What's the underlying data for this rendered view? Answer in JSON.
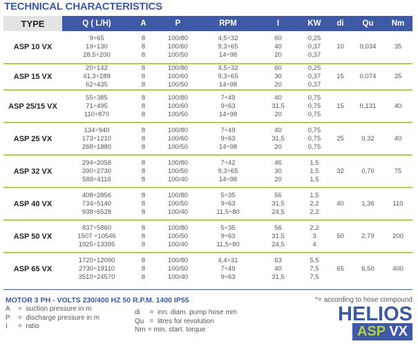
{
  "title": "TECHNICAL CHARACTERISTICS",
  "columns": [
    "TYPE",
    "Q ( L/H)",
    "A",
    "P",
    "RPM",
    "I",
    "KW",
    "di",
    "Qu",
    "Nm"
  ],
  "rows": [
    {
      "type": "ASP 10 VX",
      "q": [
        "9÷65",
        "19÷130",
        "28,5÷200"
      ],
      "a": [
        "8",
        "8",
        "8"
      ],
      "p": [
        "100/80",
        "100/60",
        "100/50"
      ],
      "rpm": [
        "4,5÷32",
        "9,3÷65",
        "14÷98"
      ],
      "i": [
        "60",
        "40",
        "20"
      ],
      "kw": [
        "0,25",
        "0,37",
        "0,37"
      ],
      "di": "10",
      "qu": "0,034",
      "nm": "35"
    },
    {
      "type": "ASP 15 VX",
      "q": [
        "20÷142",
        "41,3÷289",
        "62÷435"
      ],
      "a": [
        "8",
        "8",
        "8"
      ],
      "p": [
        "100/80",
        "100/60",
        "100/50"
      ],
      "rpm": [
        "4,5÷32",
        "9,3÷65",
        "14÷98"
      ],
      "i": [
        "60",
        "30",
        "20"
      ],
      "kw": [
        "0,25",
        "0,37",
        "0,37"
      ],
      "di": "15",
      "qu": "0,074",
      "nm": "35"
    },
    {
      "type": "ASP 25/15 VX",
      "q": [
        "55÷385",
        "71÷495",
        "110÷870"
      ],
      "a": [
        "8",
        "8",
        "8"
      ],
      "p": [
        "100/80",
        "100/60",
        "100/50"
      ],
      "rpm": [
        "7÷49",
        "9÷63",
        "14÷98"
      ],
      "i": [
        "40",
        "31,5",
        "20"
      ],
      "kw": [
        "0,75",
        "0,75",
        "0,75"
      ],
      "di": "15",
      "qu": "0,131",
      "nm": "40"
    },
    {
      "type": "ASP 25 VX",
      "q": [
        "134÷940",
        "173÷1210",
        "268÷1880"
      ],
      "a": [
        "8",
        "8",
        "8"
      ],
      "p": [
        "100/80",
        "100/60",
        "100/50"
      ],
      "rpm": [
        "7÷49",
        "9÷63",
        "14÷98"
      ],
      "i": [
        "40",
        "31,5",
        "20"
      ],
      "kw": [
        "0,75",
        "0,75",
        "0,75"
      ],
      "di": "25",
      "qu": "0,32",
      "nm": "40"
    },
    {
      "type": "ASP 32 VX",
      "q": [
        "294÷2058",
        "390÷2730",
        "588÷4116"
      ],
      "a": [
        "8",
        "8",
        "8"
      ],
      "p": [
        "100/80",
        "100/50",
        "100/40"
      ],
      "rpm": [
        "7÷42",
        "9,3÷65",
        "14÷98"
      ],
      "i": [
        "46",
        "30",
        "20"
      ],
      "kw": [
        "1,5",
        "1,5",
        "1,5"
      ],
      "di": "32",
      "qu": "0,70",
      "nm": "75"
    },
    {
      "type": "ASP 40 VX",
      "q": [
        "408÷2856",
        "734÷5140",
        "938÷6528"
      ],
      "a": [
        "8",
        "8",
        "8"
      ],
      "p": [
        "100/80",
        "100/50",
        "100/40"
      ],
      "rpm": [
        "5÷35",
        "9÷63",
        "11,5÷80"
      ],
      "i": [
        "56",
        "31,5",
        "24,5"
      ],
      "kw": [
        "1,5",
        "2,2",
        "2,2"
      ],
      "di": "40",
      "qu": "1,36",
      "nm": "110"
    },
    {
      "type": "ASP 50 VX",
      "q": [
        "837÷5860",
        "1507 ÷10546",
        "1925÷13395"
      ],
      "a": [
        "8",
        "8",
        "8"
      ],
      "p": [
        "100/80",
        "100/50",
        "100/40"
      ],
      "rpm": [
        "5÷35",
        "9÷63",
        "11,5÷80"
      ],
      "i": [
        "56",
        "31,5",
        "24,5"
      ],
      "kw": [
        "2,2",
        "3",
        "4"
      ],
      "di": "50",
      "qu": "2,79",
      "nm": "200"
    },
    {
      "type": "ASP 65 VX",
      "q": [
        "1720÷12090",
        "2730÷19110",
        "3510÷24570"
      ],
      "a": [
        "8",
        "8",
        "8"
      ],
      "p": [
        "100/80",
        "100/50",
        "100/40"
      ],
      "rpm": [
        "4,4÷31",
        "7÷49",
        "9÷63"
      ],
      "i": [
        "63",
        "40",
        "31,5"
      ],
      "kw": [
        "5,5",
        "7,5",
        "7,5"
      ],
      "di": "65",
      "qu": "6,50",
      "nm": "400"
    }
  ],
  "footer": {
    "motor": "MOTOR 3 PH - VOLTS 230/400 HZ 50 R.P.M. 1400 IP55",
    "legend_left": [
      {
        "k": "A",
        "v": "=  suction pressure in m"
      },
      {
        "k": "P",
        "v": "=  discharge pressure in m"
      },
      {
        "k": "I",
        "v": "=  ratio"
      }
    ],
    "legend_right": [
      {
        "k": "di",
        "v": "  =  inn. diam. pump hose mm"
      },
      {
        "k": "Qu",
        "v": "  =  litres for revolution"
      },
      {
        "k": "Nm",
        "v": " = min. start. torque"
      }
    ],
    "note": "*=  according to hose compound",
    "brand": "HELIOS",
    "product_a": "ASP",
    "product_b": "VX"
  },
  "colors": {
    "accent": "#3e5aa6",
    "separator": "#b2cf4a",
    "type_header": "#e3e3e3"
  }
}
